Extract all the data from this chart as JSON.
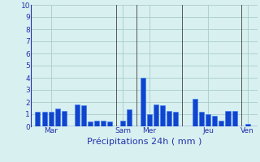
{
  "xlabel": "Précipitations 24h ( mm )",
  "ylabel_values": [
    0,
    1,
    2,
    3,
    4,
    5,
    6,
    7,
    8,
    9,
    10
  ],
  "ylim": [
    0,
    10
  ],
  "background_color": "#d8f0f0",
  "bar_color_dark": "#1144cc",
  "bar_color_light": "#3377ff",
  "grid_color": "#aacccc",
  "vline_color": "#555555",
  "bar_positions": [
    1,
    2,
    3,
    4,
    5,
    7,
    8,
    9,
    10,
    11,
    12,
    14,
    15,
    17,
    18,
    19,
    20,
    21,
    22,
    25,
    26,
    27,
    28,
    29,
    30,
    31,
    33
  ],
  "bar_values": [
    1.2,
    1.2,
    1.2,
    1.5,
    1.3,
    1.8,
    1.75,
    0.4,
    0.5,
    0.5,
    0.4,
    0.5,
    1.4,
    4.0,
    1.0,
    1.8,
    1.75,
    1.3,
    1.2,
    2.3,
    1.2,
    1.0,
    0.9,
    0.5,
    1.3,
    1.3,
    0.2
  ],
  "vlines": [
    13,
    16,
    23,
    32
  ],
  "xtick_positions": [
    3,
    14,
    18,
    27,
    33
  ],
  "xtick_labels": [
    "Mar",
    "Sam",
    "Mer",
    "Jeu",
    "Ven"
  ],
  "label_color": "#2233aa",
  "tick_fontsize": 6.5,
  "xlabel_fontsize": 8
}
